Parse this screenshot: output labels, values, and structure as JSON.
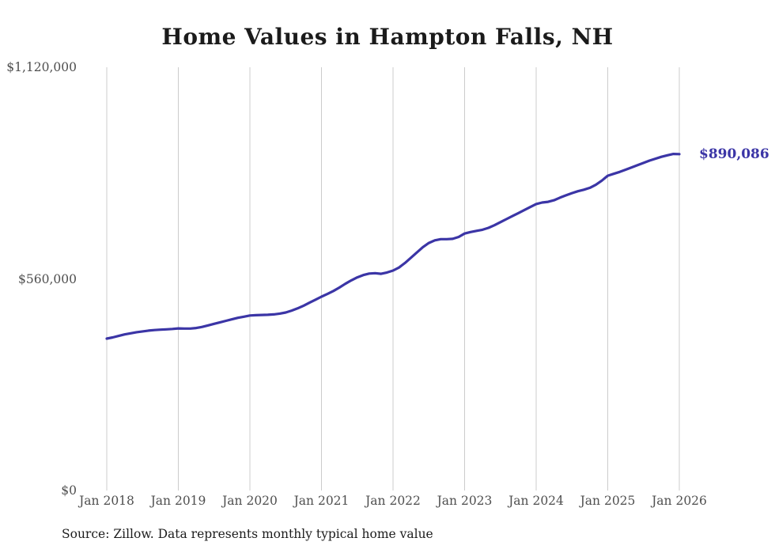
{
  "title": "Home Values in Hampton Falls, NH",
  "annotation": {
    "label": "$890,086"
  },
  "source": "Source: Zillow. Data represents monthly typical home value",
  "chart_data": {
    "type": "line",
    "title": "Home Values in Hampton Falls, NH",
    "xlabel": "",
    "ylabel": "",
    "ylim": [
      0,
      1120000
    ],
    "grid": "vertical-only",
    "legend": "none",
    "x_tick_labels": [
      "Jan 2018",
      "Jan 2019",
      "Jan 2020",
      "Jan 2021",
      "Jan 2022",
      "Jan 2023",
      "Jan 2024",
      "Jan 2025",
      "Jan 2026"
    ],
    "y_ticks": [
      {
        "label": "$0",
        "value": 0
      },
      {
        "label": "$560,000",
        "value": 560000
      },
      {
        "label": "$1,120,000",
        "value": 1120000
      }
    ],
    "final_value": 890086,
    "final_value_label": "$890,086",
    "series": [
      {
        "name": "Typical home value",
        "color": "#3b35a6",
        "x_start": "Jan 2018",
        "x_end": "Jan 2026",
        "interval": "monthly",
        "values": [
          402000,
          405000,
          409000,
          413000,
          416000,
          419000,
          421000,
          423000,
          424500,
          425500,
          426500,
          427500,
          429000,
          428500,
          428500,
          430000,
          433000,
          437000,
          441000,
          445000,
          449000,
          453000,
          457000,
          460000,
          463000,
          464000,
          464500,
          465000,
          466000,
          468000,
          471000,
          476000,
          482000,
          489000,
          497000,
          505000,
          513000,
          520000,
          528000,
          537000,
          547000,
          556000,
          564000,
          570000,
          574000,
          575000,
          573500,
          577000,
          582000,
          590000,
          602000,
          616000,
          630000,
          644000,
          655000,
          662000,
          665000,
          665000,
          666000,
          671000,
          680000,
          684000,
          687000,
          690000,
          695000,
          702000,
          710000,
          718000,
          726000,
          734000,
          742000,
          750000,
          758000,
          762000,
          764000,
          768000,
          775000,
          781000,
          787000,
          792000,
          796000,
          801000,
          809000,
          820000,
          833000,
          838000,
          843000,
          849000,
          855000,
          861000,
          867000,
          873000,
          878000,
          883000,
          887000,
          890500,
          890086
        ]
      }
    ]
  }
}
